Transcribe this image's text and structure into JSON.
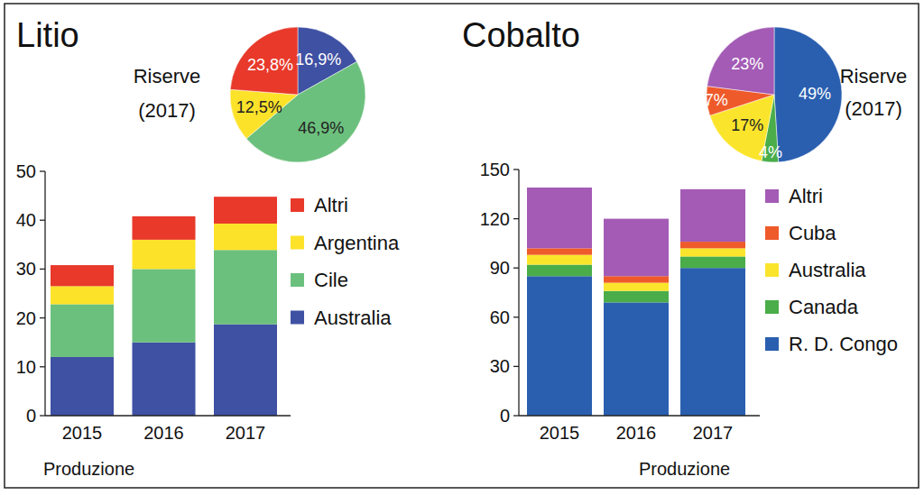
{
  "chart_data": [
    {
      "type": "bar",
      "stacked": true,
      "title": "Litio",
      "xlabel": "Produzione",
      "categories": [
        "2015",
        "2016",
        "2017"
      ],
      "series": [
        {
          "name": "Australia",
          "color": "#3f51a3",
          "values": [
            12,
            15,
            18.7
          ]
        },
        {
          "name": "Cile",
          "color": "#6cc07d",
          "values": [
            10.8,
            15,
            15.2
          ]
        },
        {
          "name": "Argentina",
          "color": "#fde22a",
          "values": [
            3.7,
            6,
            5.4
          ]
        },
        {
          "name": "Altri",
          "color": "#e8392b",
          "values": [
            4.3,
            4.8,
            5.5
          ]
        }
      ],
      "ylim": [
        0,
        50
      ],
      "yticks": [
        0,
        10,
        20,
        30,
        40,
        50
      ],
      "grid": false,
      "legend": "right"
    },
    {
      "type": "pie",
      "title": "Riserve (2017)",
      "values": [
        16.9,
        46.9,
        12.5,
        23.8
      ],
      "value_labels": [
        "16,9%",
        "46,9%",
        "12,5%",
        "23,8%"
      ],
      "colors": [
        "#3f51a3",
        "#6cc07d",
        "#fde22a",
        "#e8392b"
      ],
      "data_labels": true
    },
    {
      "type": "bar",
      "stacked": true,
      "title": "Cobalto",
      "xlabel": "Produzione",
      "categories": [
        "2015",
        "2016",
        "2017"
      ],
      "series": [
        {
          "name": "R. D. Congo",
          "color": "#2a5fb0",
          "values": [
            85,
            69,
            90
          ]
        },
        {
          "name": "Canada",
          "color": "#4aad4a",
          "values": [
            7,
            7,
            7
          ]
        },
        {
          "name": "Australia",
          "color": "#fbe52c",
          "values": [
            6,
            5,
            5
          ]
        },
        {
          "name": "Cuba",
          "color": "#ee5a2a",
          "values": [
            4,
            4,
            4
          ]
        },
        {
          "name": "Altri",
          "color": "#a35bb5",
          "values": [
            37,
            35,
            32
          ]
        }
      ],
      "ylim": [
        0,
        150
      ],
      "yticks": [
        0,
        30,
        60,
        90,
        120,
        150
      ],
      "grid": false,
      "legend": "right"
    },
    {
      "type": "pie",
      "title": "Riserve (2017)",
      "values": [
        49,
        4,
        17,
        7,
        23
      ],
      "value_labels": [
        "49%",
        "4%",
        "17%",
        "7%",
        "23%"
      ],
      "colors": [
        "#2a5fb0",
        "#4aad4a",
        "#fbe52c",
        "#ee5a2a",
        "#a35bb5"
      ],
      "data_labels": true
    }
  ]
}
